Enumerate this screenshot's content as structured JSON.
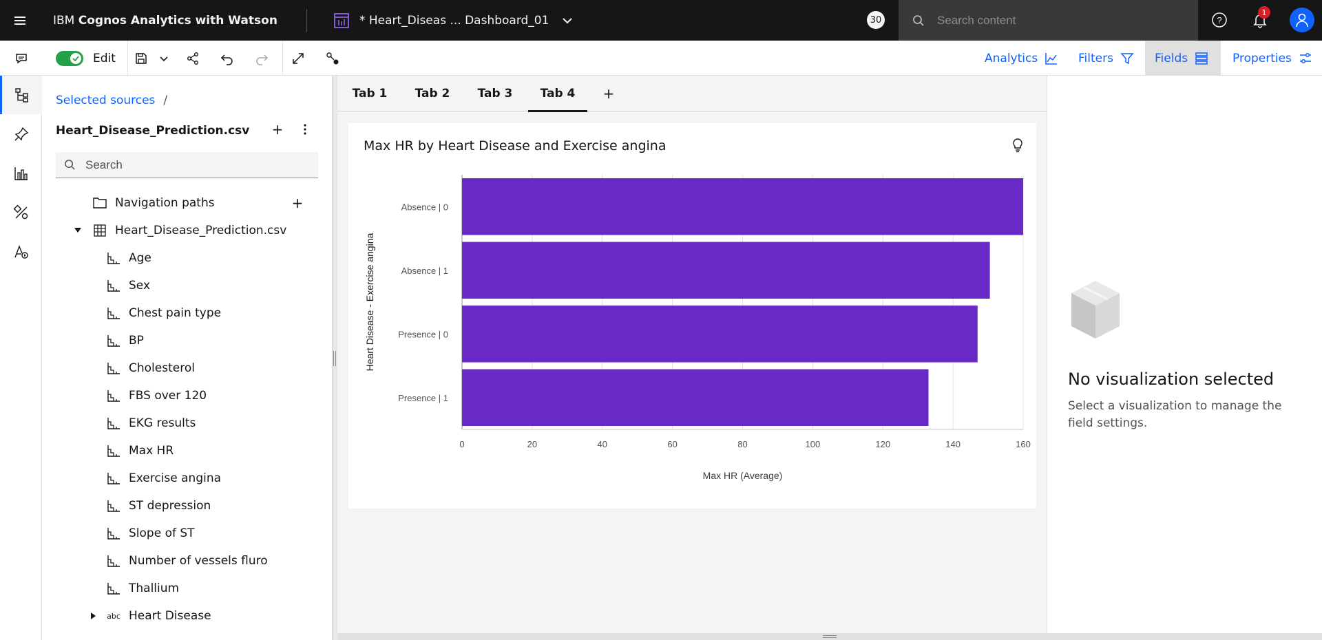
{
  "topbar": {
    "brand_light": "IBM ",
    "brand_bold": "Cognos Analytics with Watson",
    "doc_title": "* Heart_Diseas ... Dashboard_01",
    "badge_count": "30",
    "search_placeholder": "Search content",
    "notification_count": "1"
  },
  "toolbar": {
    "edit_label": "Edit",
    "analytics_label": "Analytics",
    "filters_label": "Filters",
    "fields_label": "Fields",
    "properties_label": "Properties"
  },
  "sources": {
    "breadcrumb": "Selected sources",
    "breadcrumb_sep": "/",
    "title": "Heart_Disease_Prediction.csv",
    "search_placeholder": "Search",
    "navigation_paths": "Navigation paths",
    "table_name": "Heart_Disease_Prediction.csv",
    "fields": [
      "Age",
      "Sex",
      "Chest pain type",
      "BP",
      "Cholesterol",
      "FBS over 120",
      "EKG results",
      "Max HR",
      "Exercise angina",
      "ST depression",
      "Slope of ST",
      "Number of vessels fluro",
      "Thallium"
    ],
    "text_field": "Heart Disease",
    "text_field_icon": "abc"
  },
  "tabs": [
    "Tab 1",
    "Tab 2",
    "Tab 3",
    "Tab 4"
  ],
  "active_tab": "Tab 4",
  "chart_data": {
    "type": "bar",
    "orientation": "horizontal",
    "title": "Max HR by Heart Disease and Exercise angina",
    "categories": [
      "Absence | 0",
      "Absence | 1",
      "Presence | 0",
      "Presence | 1"
    ],
    "values": [
      160,
      150.5,
      147,
      133
    ],
    "xlabel": "Max HR (Average)",
    "ylabel": "Heart Disease - Exercise angina",
    "xlim": [
      0,
      160
    ],
    "xticks": [
      0,
      20,
      40,
      60,
      80,
      100,
      120,
      140,
      160
    ],
    "bar_color": "#6929c4",
    "grid": true
  },
  "right_panel": {
    "empty_title": "No visualization selected",
    "empty_desc": "Select a visualization to manage the field settings."
  },
  "colors": {
    "accent": "#0f62fe",
    "topbar": "#161616",
    "bar": "#6929c4",
    "toggle_on": "#24a148"
  }
}
